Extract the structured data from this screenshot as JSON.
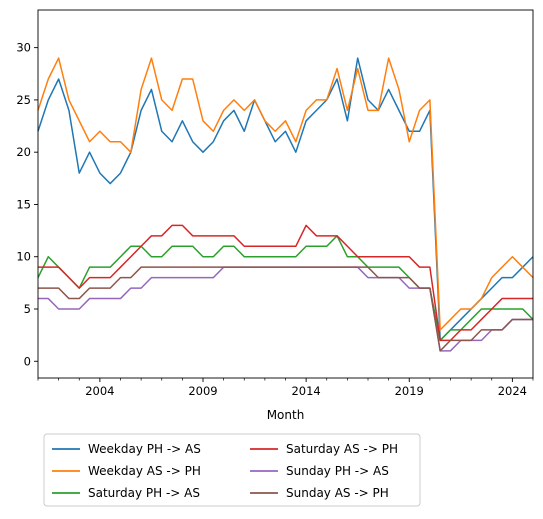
{
  "chart_data": {
    "type": "line",
    "xlabel": "Month",
    "ylabel": "",
    "xlim": [
      2001.0,
      2025.0
    ],
    "ylim": [
      -1.6,
      33.6
    ],
    "x_ticks": [
      2004,
      2009,
      2014,
      2019,
      2024
    ],
    "x_tick_labels": [
      "2004",
      "2009",
      "2014",
      "2019",
      "2024"
    ],
    "y_ticks": [
      0,
      5,
      10,
      15,
      20,
      25,
      30
    ],
    "y_tick_labels": [
      "0",
      "5",
      "10",
      "15",
      "20",
      "25",
      "30"
    ],
    "grid": false,
    "legend_placement": "below, two columns",
    "x": [
      2001.0,
      2001.5,
      2002.0,
      2002.5,
      2003.0,
      2003.5,
      2004.0,
      2004.5,
      2005.0,
      2005.5,
      2006.0,
      2006.5,
      2007.0,
      2007.5,
      2008.0,
      2008.5,
      2009.0,
      2009.5,
      2010.0,
      2010.5,
      2011.0,
      2011.5,
      2012.0,
      2012.5,
      2013.0,
      2013.5,
      2014.0,
      2014.5,
      2015.0,
      2015.5,
      2016.0,
      2016.5,
      2017.0,
      2017.5,
      2018.0,
      2018.5,
      2019.0,
      2019.5,
      2020.0,
      2020.5,
      2021.0,
      2021.5,
      2022.0,
      2022.5,
      2023.0,
      2023.5,
      2024.0,
      2024.5,
      2025.0
    ],
    "series": [
      {
        "name": "Weekday PH -> AS",
        "color": "#1f77b4",
        "values": [
          22,
          25,
          27,
          24,
          18,
          20,
          18,
          17,
          18,
          20,
          24,
          26,
          22,
          21,
          23,
          21,
          20,
          21,
          23,
          24,
          22,
          25,
          23,
          21,
          22,
          20,
          23,
          24,
          25,
          27,
          23,
          29,
          25,
          24,
          26,
          24,
          22,
          22,
          24,
          2,
          3,
          4,
          5,
          6,
          7,
          8,
          8,
          9,
          10
        ]
      },
      {
        "name": "Weekday AS -> PH",
        "color": "#ff7f0e",
        "values": [
          24,
          27,
          29,
          25,
          23,
          21,
          22,
          21,
          21,
          20,
          26,
          29,
          25,
          24,
          27,
          27,
          23,
          22,
          24,
          25,
          24,
          25,
          23,
          22,
          23,
          21,
          24,
          25,
          25,
          28,
          24,
          28,
          24,
          24,
          29,
          26,
          21,
          24,
          25,
          3,
          4,
          5,
          5,
          6,
          8,
          9,
          10,
          9,
          8
        ]
      },
      {
        "name": "Saturday PH -> AS",
        "color": "#2ca02c",
        "values": [
          8,
          10,
          9,
          8,
          7,
          9,
          9,
          9,
          10,
          11,
          11,
          10,
          10,
          11,
          11,
          11,
          10,
          10,
          11,
          11,
          10,
          10,
          10,
          10,
          10,
          10,
          11,
          11,
          11,
          12,
          10,
          10,
          9,
          9,
          9,
          9,
          8,
          7,
          7,
          2,
          3,
          3,
          4,
          5,
          5,
          5,
          5,
          5,
          4
        ]
      },
      {
        "name": "Saturday AS -> PH",
        "color": "#d62728",
        "values": [
          9,
          9,
          9,
          8,
          7,
          8,
          8,
          8,
          9,
          10,
          11,
          12,
          12,
          13,
          13,
          12,
          12,
          12,
          12,
          12,
          11,
          11,
          11,
          11,
          11,
          11,
          13,
          12,
          12,
          12,
          11,
          10,
          10,
          10,
          10,
          10,
          10,
          9,
          9,
          2,
          2,
          3,
          3,
          4,
          5,
          6,
          6,
          6,
          6
        ]
      },
      {
        "name": "Sunday PH -> AS",
        "color": "#9467bd",
        "values": [
          6,
          6,
          5,
          5,
          5,
          6,
          6,
          6,
          6,
          7,
          7,
          8,
          8,
          8,
          8,
          8,
          8,
          8,
          9,
          9,
          9,
          9,
          9,
          9,
          9,
          9,
          9,
          9,
          9,
          9,
          9,
          9,
          8,
          8,
          8,
          8,
          7,
          7,
          7,
          1,
          1,
          2,
          2,
          2,
          3,
          3,
          4,
          4,
          4
        ]
      },
      {
        "name": "Sunday AS -> PH",
        "color": "#8c564b",
        "values": [
          7,
          7,
          7,
          6,
          6,
          7,
          7,
          7,
          8,
          8,
          9,
          9,
          9,
          9,
          9,
          9,
          9,
          9,
          9,
          9,
          9,
          9,
          9,
          9,
          9,
          9,
          9,
          9,
          9,
          9,
          9,
          9,
          9,
          8,
          8,
          8,
          8,
          7,
          7,
          1,
          2,
          2,
          2,
          3,
          3,
          3,
          4,
          4,
          4
        ]
      }
    ]
  }
}
